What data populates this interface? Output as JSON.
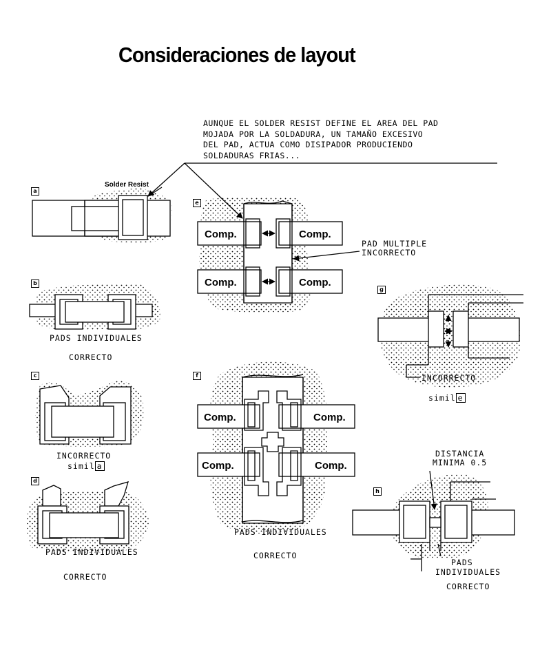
{
  "title": "Consideraciones de layout",
  "note": {
    "lines": [
      "AUNQUE EL SOLDER RESIST DEFINE EL AREA DEL PAD",
      "MOJADA POR LA SOLDADURA, UN TAMAÑO EXCESIVO",
      "DEL PAD, ACTUA COMO DISIPADOR PRODUCIENDO",
      "SOLDADURAS FRIAS..."
    ]
  },
  "solder_resist_label": "Solder Resist",
  "panels": {
    "a": {
      "tag": "a"
    },
    "b": {
      "tag": "b",
      "caption": "PADS INDIVIDUALES",
      "verdict": "CORRECTO"
    },
    "c": {
      "tag": "c",
      "verdict": "INCORRECTO",
      "simil_text": "simil",
      "simil_ref": "a"
    },
    "d": {
      "tag": "d",
      "caption": "PADS INDIVIDUALES",
      "verdict": "CORRECTO"
    },
    "e": {
      "tag": "e",
      "callout": [
        "PAD MULTIPLE",
        "INCORRECTO"
      ]
    },
    "f": {
      "tag": "f",
      "caption": "PADS INDIVIDUALES",
      "verdict": "CORRECTO"
    },
    "g": {
      "tag": "g",
      "verdict": "INCORRECTO",
      "simil_text": "simil",
      "simil_ref": "e"
    },
    "h": {
      "tag": "h",
      "distance": [
        "DISTANCIA",
        "MINIMA 0.5"
      ],
      "caption": [
        "PADS",
        "INDIVIDUALES"
      ],
      "verdict": "CORRECTO"
    }
  },
  "component_label": "Comp."
}
